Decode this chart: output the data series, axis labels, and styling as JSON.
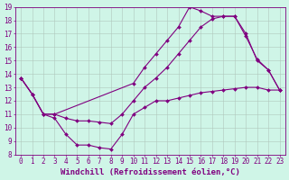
{
  "xlabel": "Windchill (Refroidissement éolien,°C)",
  "background_color": "#cff5e7",
  "line_color": "#800080",
  "grid_color": "#b0c8bc",
  "xlim": [
    -0.5,
    23.5
  ],
  "ylim": [
    8,
    19
  ],
  "xticks": [
    0,
    1,
    2,
    3,
    4,
    5,
    6,
    7,
    8,
    9,
    10,
    11,
    12,
    13,
    14,
    15,
    16,
    17,
    18,
    19,
    20,
    21,
    22,
    23
  ],
  "yticks": [
    8,
    9,
    10,
    11,
    12,
    13,
    14,
    15,
    16,
    17,
    18,
    19
  ],
  "series1_x": [
    0,
    1,
    2,
    3,
    4,
    5,
    6,
    7,
    8,
    9,
    10,
    11,
    12,
    13,
    14,
    15,
    16,
    17,
    18,
    19,
    20,
    21,
    22,
    23
  ],
  "series1_y": [
    13.7,
    12.5,
    11.0,
    10.7,
    9.5,
    8.7,
    8.7,
    8.5,
    8.4,
    9.5,
    11.0,
    11.5,
    12.0,
    12.0,
    12.2,
    12.4,
    12.6,
    12.7,
    12.8,
    12.9,
    13.0,
    13.0,
    12.8,
    12.8
  ],
  "series2_x": [
    0,
    1,
    2,
    3,
    10,
    11,
    12,
    13,
    14,
    15,
    16,
    17,
    18,
    19,
    20,
    21,
    22,
    23
  ],
  "series2_y": [
    13.7,
    12.5,
    11.0,
    11.0,
    13.3,
    14.5,
    15.5,
    16.5,
    17.5,
    19.0,
    18.7,
    18.3,
    18.3,
    18.3,
    17.0,
    15.0,
    14.3,
    12.8
  ],
  "series3_x": [
    0,
    1,
    2,
    3,
    4,
    5,
    6,
    7,
    8,
    9,
    10,
    11,
    12,
    13,
    14,
    15,
    16,
    17,
    18,
    19,
    20,
    21,
    22,
    23
  ],
  "series3_y": [
    13.7,
    12.5,
    11.0,
    11.0,
    10.7,
    10.5,
    10.5,
    10.4,
    10.3,
    11.0,
    12.0,
    13.0,
    13.7,
    14.5,
    15.5,
    16.5,
    17.5,
    18.1,
    18.3,
    18.3,
    16.8,
    15.1,
    14.3,
    12.8
  ],
  "tick_fontsize": 5.5,
  "label_fontsize": 6.5,
  "marker_size": 2.0,
  "line_width": 0.8
}
